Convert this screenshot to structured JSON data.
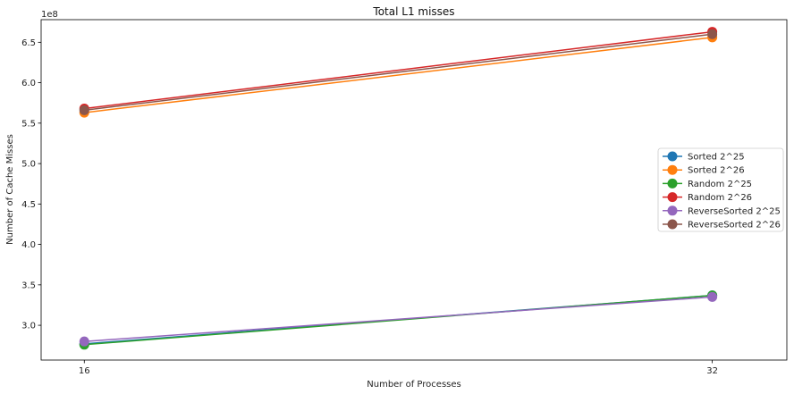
{
  "chart_data": {
    "type": "line",
    "title": "Total L1 misses",
    "xlabel": "Number of Processes",
    "ylabel": "Number of Cache Misses",
    "y_scale_label": "1e8",
    "x": [
      16,
      32
    ],
    "x_tick_labels": [
      "16",
      "32"
    ],
    "xlim": [
      14.9,
      33.9
    ],
    "ylim": [
      2.57,
      6.78
    ],
    "y_ticks": [
      3.0,
      3.5,
      4.0,
      4.5,
      5.0,
      5.5,
      6.0,
      6.5
    ],
    "y_tick_labels": [
      "3.0",
      "3.5",
      "4.0",
      "4.5",
      "5.0",
      "5.5",
      "6.0",
      "6.5"
    ],
    "grid": false,
    "legend_position": "center-right",
    "series": [
      {
        "name": "Sorted 2^25",
        "color": "#1f77b4",
        "values": [
          2.77,
          3.37
        ]
      },
      {
        "name": "Sorted 2^26",
        "color": "#ff7f0e",
        "values": [
          5.63,
          6.56
        ]
      },
      {
        "name": "Random 2^25",
        "color": "#2ca02c",
        "values": [
          2.76,
          3.37
        ]
      },
      {
        "name": "Random 2^26",
        "color": "#d62728",
        "values": [
          5.68,
          6.63
        ]
      },
      {
        "name": "ReverseSorted 2^25",
        "color": "#9467bd",
        "values": [
          2.8,
          3.35
        ]
      },
      {
        "name": "ReverseSorted 2^26",
        "color": "#8c564b",
        "values": [
          5.66,
          6.6
        ]
      }
    ]
  }
}
